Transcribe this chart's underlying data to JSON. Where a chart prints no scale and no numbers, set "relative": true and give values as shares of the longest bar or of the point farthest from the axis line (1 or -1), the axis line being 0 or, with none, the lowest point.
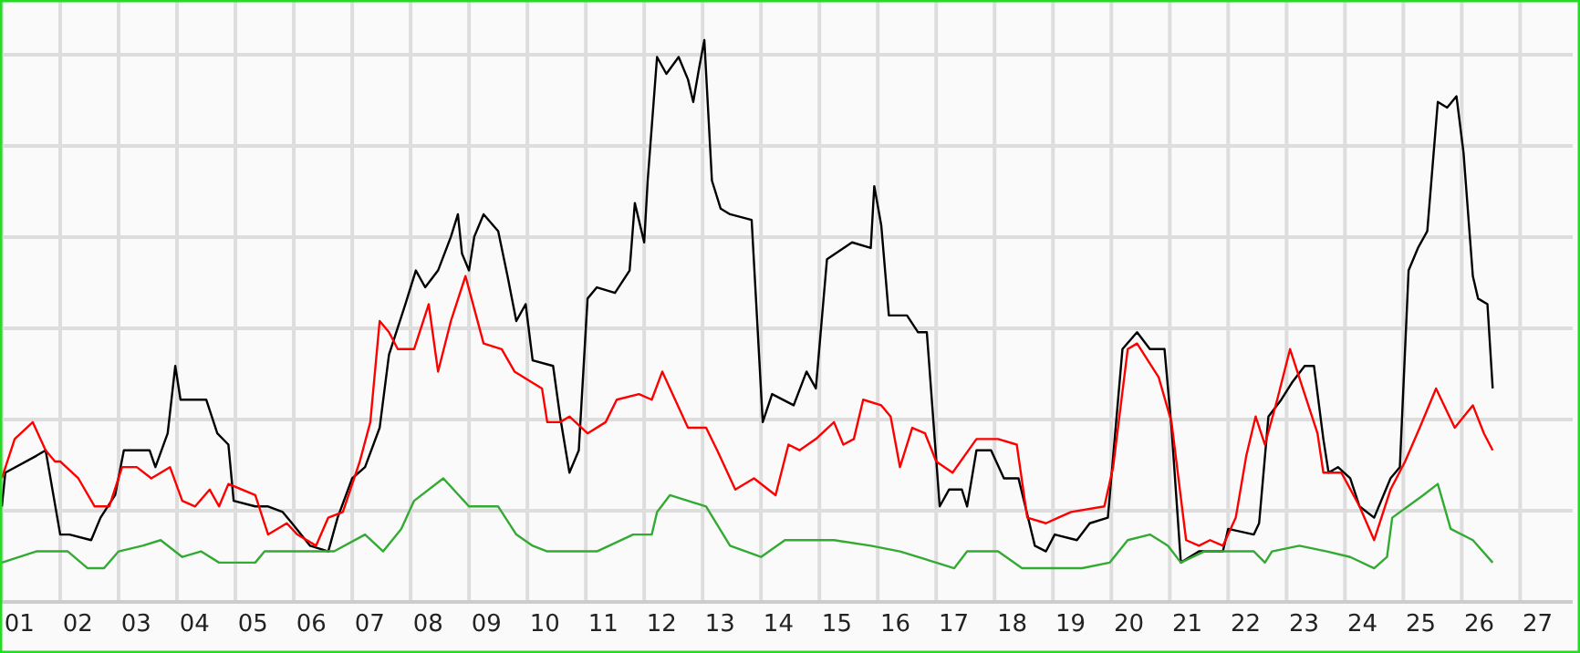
{
  "chart_data": {
    "type": "line",
    "relative": true,
    "grid": true,
    "line_style": "solid",
    "xlim": [
      1,
      27.9
    ],
    "xticks": [
      {
        "value": 1.3,
        "label": "01"
      },
      {
        "value": 2.3,
        "label": "02"
      },
      {
        "value": 3.3,
        "label": "03"
      },
      {
        "value": 4.3,
        "label": "04"
      },
      {
        "value": 5.3,
        "label": "05"
      },
      {
        "value": 6.3,
        "label": "06"
      },
      {
        "value": 7.3,
        "label": "07"
      },
      {
        "value": 8.3,
        "label": "08"
      },
      {
        "value": 9.3,
        "label": "09"
      },
      {
        "value": 10.3,
        "label": "10"
      },
      {
        "value": 11.3,
        "label": "11"
      },
      {
        "value": 12.3,
        "label": "12"
      },
      {
        "value": 13.3,
        "label": "13"
      },
      {
        "value": 14.3,
        "label": "14"
      },
      {
        "value": 15.3,
        "label": "15"
      },
      {
        "value": 16.3,
        "label": "16"
      },
      {
        "value": 17.3,
        "label": "17"
      },
      {
        "value": 18.3,
        "label": "18"
      },
      {
        "value": 19.3,
        "label": "19"
      },
      {
        "value": 20.3,
        "label": "20"
      },
      {
        "value": 21.3,
        "label": "21"
      },
      {
        "value": 22.3,
        "label": "22"
      },
      {
        "value": 23.3,
        "label": "23"
      },
      {
        "value": 24.3,
        "label": "24"
      },
      {
        "value": 25.3,
        "label": "25"
      },
      {
        "value": 26.3,
        "label": "26"
      },
      {
        "value": 27.3,
        "label": "27"
      }
    ],
    "series": [
      {
        "color": "#000000",
        "x": [
          1.0,
          1.06,
          1.59,
          1.75,
          2.0,
          2.16,
          2.53,
          2.69,
          2.94,
          3.09,
          3.53,
          3.63,
          3.84,
          3.97,
          4.06,
          4.5,
          4.69,
          4.88,
          4.97,
          5.34,
          5.56,
          5.81,
          5.97,
          6.28,
          6.59,
          6.75,
          7.0,
          7.22,
          7.47,
          7.63,
          7.91,
          8.09,
          8.25,
          8.47,
          8.69,
          8.81,
          8.88,
          9.0,
          9.09,
          9.25,
          9.5,
          9.66,
          9.81,
          9.97,
          10.09,
          10.44,
          10.56,
          10.72,
          10.88,
          11.03,
          11.19,
          11.5,
          11.75,
          11.84,
          12.0,
          12.06,
          12.22,
          12.38,
          12.59,
          12.75,
          12.84,
          12.94,
          13.03,
          13.16,
          13.31,
          13.47,
          13.84,
          14.03,
          14.19,
          14.56,
          14.78,
          14.94,
          15.13,
          15.56,
          15.88,
          15.94,
          16.06,
          16.19,
          16.5,
          16.69,
          16.84,
          17.06,
          17.22,
          17.44,
          17.53,
          17.69,
          17.94,
          18.16,
          18.41,
          18.69,
          18.88,
          19.03,
          19.41,
          19.63,
          19.94,
          20.19,
          20.44,
          20.66,
          20.91,
          21.03,
          21.19,
          21.5,
          21.91,
          22.0,
          22.44,
          22.53,
          22.69,
          22.91,
          23.09,
          23.31,
          23.47,
          23.63,
          23.72,
          23.88,
          24.09,
          24.25,
          24.5,
          24.78,
          24.94,
          25.09,
          25.25,
          25.41,
          25.59,
          25.75,
          25.91,
          26.03,
          26.19,
          26.28,
          26.44,
          26.53
        ],
        "values": [
          0.17,
          0.23,
          0.26,
          0.27,
          0.12,
          0.12,
          0.11,
          0.15,
          0.19,
          0.27,
          0.27,
          0.24,
          0.3,
          0.42,
          0.36,
          0.36,
          0.3,
          0.28,
          0.18,
          0.17,
          0.17,
          0.16,
          0.14,
          0.1,
          0.09,
          0.15,
          0.22,
          0.24,
          0.31,
          0.44,
          0.53,
          0.59,
          0.56,
          0.59,
          0.65,
          0.69,
          0.62,
          0.59,
          0.65,
          0.69,
          0.66,
          0.58,
          0.5,
          0.53,
          0.43,
          0.42,
          0.33,
          0.23,
          0.27,
          0.54,
          0.56,
          0.55,
          0.59,
          0.71,
          0.64,
          0.75,
          0.97,
          0.94,
          0.97,
          0.93,
          0.89,
          0.95,
          1.0,
          0.75,
          0.7,
          0.69,
          0.68,
          0.32,
          0.37,
          0.35,
          0.41,
          0.38,
          0.61,
          0.64,
          0.63,
          0.74,
          0.67,
          0.51,
          0.51,
          0.48,
          0.48,
          0.17,
          0.2,
          0.2,
          0.17,
          0.27,
          0.27,
          0.22,
          0.22,
          0.1,
          0.09,
          0.12,
          0.11,
          0.14,
          0.15,
          0.45,
          0.48,
          0.45,
          0.45,
          0.31,
          0.07,
          0.09,
          0.09,
          0.13,
          0.12,
          0.14,
          0.33,
          0.36,
          0.39,
          0.42,
          0.42,
          0.29,
          0.23,
          0.24,
          0.22,
          0.17,
          0.15,
          0.22,
          0.24,
          0.59,
          0.63,
          0.66,
          0.89,
          0.88,
          0.9,
          0.8,
          0.58,
          0.54,
          0.53,
          0.38
        ]
      },
      {
        "color": "#ff0000",
        "x": [
          1.0,
          1.22,
          1.53,
          1.75,
          1.91,
          2.0,
          2.31,
          2.59,
          2.84,
          3.06,
          3.31,
          3.56,
          3.88,
          4.09,
          4.31,
          4.56,
          4.72,
          4.88,
          5.34,
          5.56,
          5.88,
          6.06,
          6.38,
          6.59,
          6.84,
          7.13,
          7.31,
          7.47,
          7.63,
          7.78,
          8.06,
          8.31,
          8.47,
          8.69,
          8.94,
          9.25,
          9.56,
          9.78,
          10.09,
          10.25,
          10.34,
          10.56,
          10.72,
          11.03,
          11.34,
          11.53,
          11.91,
          12.13,
          12.31,
          12.53,
          12.75,
          13.06,
          13.25,
          13.56,
          13.88,
          14.25,
          14.47,
          14.66,
          14.94,
          15.25,
          15.41,
          15.59,
          15.75,
          16.06,
          16.22,
          16.38,
          16.59,
          16.81,
          17.0,
          17.28,
          17.69,
          18.06,
          18.38,
          18.56,
          18.88,
          19.09,
          19.31,
          19.88,
          20.03,
          20.28,
          20.44,
          20.81,
          21.03,
          21.28,
          21.5,
          21.69,
          21.91,
          22.13,
          22.31,
          22.47,
          22.63,
          22.84,
          23.06,
          23.31,
          23.53,
          23.63,
          23.94,
          24.25,
          24.5,
          24.78,
          25.03,
          25.28,
          25.56,
          25.88,
          26.19,
          26.38,
          26.53
        ],
        "values": [
          0.22,
          0.29,
          0.32,
          0.27,
          0.25,
          0.25,
          0.22,
          0.17,
          0.17,
          0.24,
          0.24,
          0.22,
          0.24,
          0.18,
          0.17,
          0.2,
          0.17,
          0.21,
          0.19,
          0.12,
          0.14,
          0.12,
          0.1,
          0.15,
          0.16,
          0.25,
          0.32,
          0.5,
          0.48,
          0.45,
          0.45,
          0.53,
          0.41,
          0.5,
          0.58,
          0.46,
          0.45,
          0.41,
          0.39,
          0.38,
          0.32,
          0.32,
          0.33,
          0.3,
          0.32,
          0.36,
          0.37,
          0.36,
          0.41,
          0.36,
          0.31,
          0.31,
          0.27,
          0.2,
          0.22,
          0.19,
          0.28,
          0.27,
          0.29,
          0.32,
          0.28,
          0.29,
          0.36,
          0.35,
          0.33,
          0.24,
          0.31,
          0.3,
          0.25,
          0.23,
          0.29,
          0.29,
          0.28,
          0.15,
          0.14,
          0.15,
          0.16,
          0.17,
          0.24,
          0.45,
          0.46,
          0.4,
          0.32,
          0.11,
          0.1,
          0.11,
          0.1,
          0.15,
          0.26,
          0.33,
          0.28,
          0.36,
          0.45,
          0.37,
          0.3,
          0.23,
          0.23,
          0.17,
          0.11,
          0.2,
          0.25,
          0.31,
          0.38,
          0.31,
          0.35,
          0.3,
          0.27
        ]
      },
      {
        "color": "#33aa33",
        "x": [
          1.0,
          1.59,
          2.13,
          2.47,
          2.75,
          3.0,
          3.41,
          3.72,
          4.09,
          4.41,
          4.72,
          5.34,
          5.5,
          5.97,
          6.69,
          7.22,
          7.53,
          7.84,
          8.06,
          8.56,
          9.0,
          9.5,
          9.81,
          10.09,
          10.34,
          11.19,
          11.81,
          12.13,
          12.22,
          12.44,
          13.06,
          13.47,
          14.0,
          14.41,
          15.25,
          15.88,
          16.38,
          17.0,
          17.31,
          17.53,
          18.06,
          18.47,
          19.09,
          19.5,
          19.97,
          20.28,
          20.66,
          20.97,
          21.19,
          21.59,
          22.44,
          22.63,
          22.75,
          23.22,
          23.69,
          24.09,
          24.5,
          24.72,
          24.81,
          25.34,
          25.59,
          25.81,
          26.19,
          26.53
        ],
        "values": [
          0.07,
          0.09,
          0.09,
          0.06,
          0.06,
          0.09,
          0.1,
          0.11,
          0.08,
          0.09,
          0.07,
          0.07,
          0.09,
          0.09,
          0.09,
          0.12,
          0.09,
          0.13,
          0.18,
          0.22,
          0.17,
          0.17,
          0.12,
          0.1,
          0.09,
          0.09,
          0.12,
          0.12,
          0.16,
          0.19,
          0.17,
          0.1,
          0.08,
          0.11,
          0.11,
          0.1,
          0.09,
          0.07,
          0.06,
          0.09,
          0.09,
          0.06,
          0.06,
          0.06,
          0.07,
          0.11,
          0.12,
          0.1,
          0.07,
          0.09,
          0.09,
          0.07,
          0.09,
          0.1,
          0.09,
          0.08,
          0.06,
          0.08,
          0.15,
          0.19,
          0.21,
          0.13,
          0.11,
          0.07
        ]
      }
    ]
  }
}
